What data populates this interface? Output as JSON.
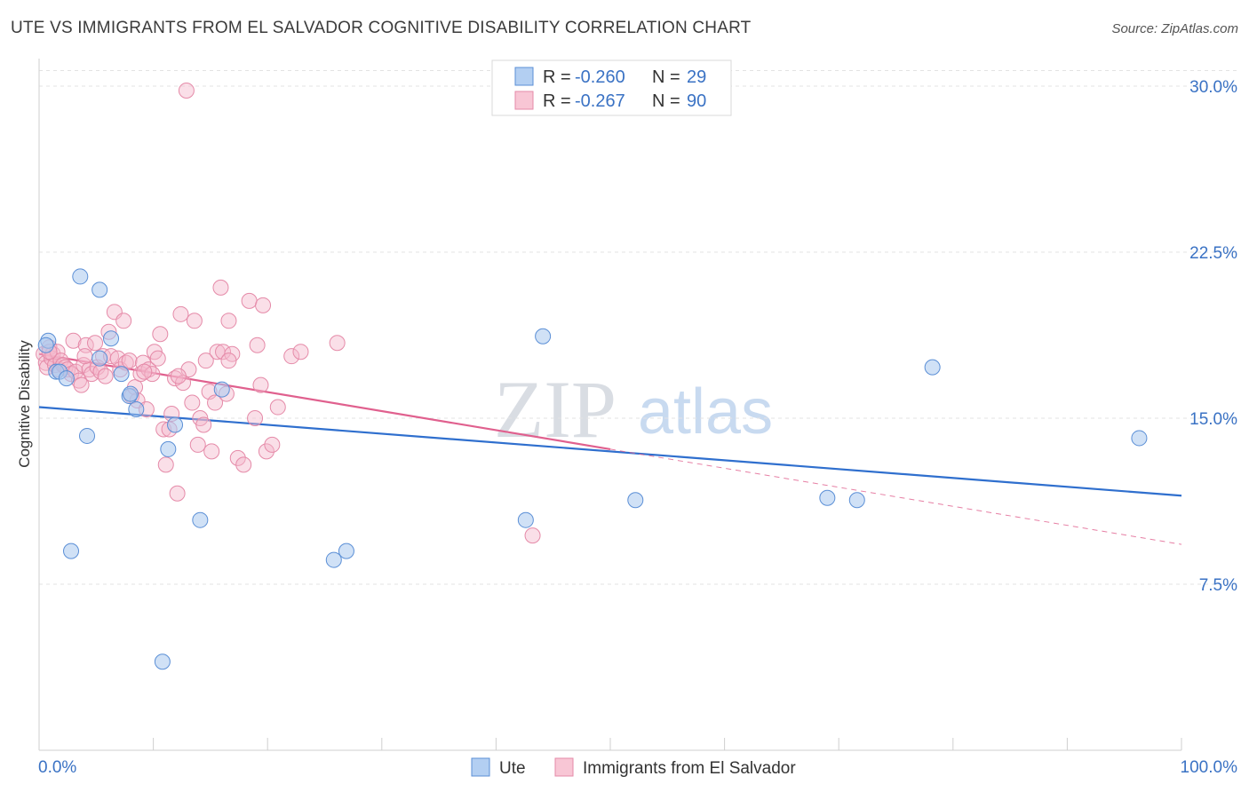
{
  "title": "UTE VS IMMIGRANTS FROM EL SALVADOR COGNITIVE DISABILITY CORRELATION CHART",
  "source": "Source: ZipAtlas.com",
  "watermark": {
    "zip": "ZIP",
    "atlas": "atlas"
  },
  "colors": {
    "ute_fill": "#a9c8ef",
    "ute_stroke": "#5b8fd6",
    "ute_line": "#2f6fce",
    "sal_fill": "#f5b8cb",
    "sal_stroke": "#e58aa8",
    "sal_line": "#e0608e",
    "grid": "#e3e3e3",
    "tick_text": "#3a72c4"
  },
  "legend": {
    "rows": [
      {
        "r_label": "R =",
        "r_value": "-0.260",
        "n_label": "N =",
        "n_value": "29"
      },
      {
        "r_label": "R =",
        "r_value": "-0.267",
        "n_label": "N =",
        "n_value": "90"
      }
    ]
  },
  "bottom_legend": [
    "Ute",
    "Immigrants from El Salvador"
  ],
  "chart_data": {
    "type": "scatter",
    "title": "UTE VS IMMIGRANTS FROM EL SALVADOR COGNITIVE DISABILITY CORRELATION CHART",
    "xlabel": "",
    "ylabel": "Cognitive Disability",
    "xlim": [
      0,
      100
    ],
    "ylim": [
      0,
      31
    ],
    "x_tick_labels": [
      "0.0%",
      "100.0%"
    ],
    "y_ticks": [
      7.5,
      15.0,
      22.5,
      30.0
    ],
    "y_tick_labels": [
      "7.5%",
      "15.0%",
      "22.5%",
      "30.0%"
    ],
    "grid": true,
    "legend_position": "top-center",
    "series": [
      {
        "name": "Ute",
        "stats": {
          "r": -0.26,
          "n": 29
        },
        "trend": {
          "x": [
            0,
            100
          ],
          "y": [
            15.5,
            11.5
          ],
          "dashed_from": null
        },
        "points": [
          [
            0.8,
            18.5
          ],
          [
            1.5,
            17.1
          ],
          [
            1.8,
            17.1
          ],
          [
            2.4,
            16.8
          ],
          [
            3.6,
            21.4
          ],
          [
            4.2,
            14.2
          ],
          [
            2.8,
            9.0
          ],
          [
            5.3,
            17.7
          ],
          [
            5.3,
            20.8
          ],
          [
            6.3,
            18.6
          ],
          [
            7.2,
            17.0
          ],
          [
            7.9,
            16.0
          ],
          [
            8.0,
            16.1
          ],
          [
            8.5,
            15.4
          ],
          [
            10.8,
            4.0
          ],
          [
            11.3,
            13.6
          ],
          [
            11.9,
            14.7
          ],
          [
            14.1,
            10.4
          ],
          [
            16.0,
            16.3
          ],
          [
            25.8,
            8.6
          ],
          [
            26.9,
            9.0
          ],
          [
            42.6,
            10.4
          ],
          [
            44.1,
            18.7
          ],
          [
            52.2,
            11.3
          ],
          [
            69.0,
            11.4
          ],
          [
            71.6,
            11.3
          ],
          [
            78.2,
            17.3
          ],
          [
            96.3,
            14.1
          ],
          [
            0.6,
            18.3
          ]
        ]
      },
      {
        "name": "Immigrants from El Salvador",
        "stats": {
          "r": -0.267,
          "n": 90
        },
        "trend": {
          "x": [
            0,
            100
          ],
          "y": [
            17.9,
            9.3
          ],
          "solid_until_x": 50
        },
        "points": [
          [
            0.4,
            17.9
          ],
          [
            0.6,
            17.5
          ],
          [
            0.7,
            17.3
          ],
          [
            0.9,
            18.2
          ],
          [
            1.1,
            17.7
          ],
          [
            1.2,
            17.9
          ],
          [
            1.4,
            17.4
          ],
          [
            1.6,
            18.0
          ],
          [
            1.7,
            17.2
          ],
          [
            1.9,
            17.6
          ],
          [
            2.1,
            17.4
          ],
          [
            2.3,
            17.3
          ],
          [
            2.5,
            17.2
          ],
          [
            2.8,
            17.0
          ],
          [
            3.0,
            18.5
          ],
          [
            3.2,
            17.1
          ],
          [
            3.5,
            16.7
          ],
          [
            3.7,
            16.5
          ],
          [
            3.9,
            17.4
          ],
          [
            4.1,
            18.3
          ],
          [
            4.4,
            17.2
          ],
          [
            4.6,
            17.0
          ],
          [
            4.9,
            18.4
          ],
          [
            5.1,
            17.3
          ],
          [
            5.4,
            17.1
          ],
          [
            5.6,
            17.8
          ],
          [
            5.8,
            16.9
          ],
          [
            6.1,
            18.9
          ],
          [
            6.3,
            17.8
          ],
          [
            6.6,
            19.8
          ],
          [
            6.9,
            17.7
          ],
          [
            7.1,
            17.2
          ],
          [
            7.4,
            19.4
          ],
          [
            7.6,
            17.5
          ],
          [
            7.9,
            17.6
          ],
          [
            8.1,
            16.0
          ],
          [
            8.4,
            16.4
          ],
          [
            8.6,
            15.8
          ],
          [
            8.9,
            17.0
          ],
          [
            9.1,
            17.5
          ],
          [
            9.4,
            15.4
          ],
          [
            9.6,
            17.2
          ],
          [
            9.9,
            17.0
          ],
          [
            10.1,
            18.0
          ],
          [
            10.4,
            17.7
          ],
          [
            10.6,
            18.8
          ],
          [
            10.9,
            14.5
          ],
          [
            11.1,
            12.9
          ],
          [
            11.4,
            14.5
          ],
          [
            11.6,
            15.2
          ],
          [
            11.9,
            16.8
          ],
          [
            12.1,
            11.6
          ],
          [
            12.4,
            19.7
          ],
          [
            12.6,
            16.6
          ],
          [
            12.9,
            29.8
          ],
          [
            13.1,
            17.2
          ],
          [
            13.4,
            15.7
          ],
          [
            13.6,
            19.4
          ],
          [
            13.9,
            13.8
          ],
          [
            14.1,
            15.0
          ],
          [
            14.4,
            14.7
          ],
          [
            14.6,
            17.6
          ],
          [
            14.9,
            16.2
          ],
          [
            15.1,
            13.5
          ],
          [
            15.4,
            15.7
          ],
          [
            15.6,
            18.0
          ],
          [
            15.9,
            20.9
          ],
          [
            16.1,
            18.0
          ],
          [
            16.4,
            16.1
          ],
          [
            16.6,
            19.4
          ],
          [
            16.9,
            17.9
          ],
          [
            17.4,
            13.2
          ],
          [
            17.9,
            12.9
          ],
          [
            18.4,
            20.3
          ],
          [
            18.9,
            15.0
          ],
          [
            19.1,
            18.3
          ],
          [
            19.4,
            16.5
          ],
          [
            19.6,
            20.1
          ],
          [
            19.9,
            13.5
          ],
          [
            20.4,
            13.8
          ],
          [
            20.9,
            15.5
          ],
          [
            22.1,
            17.8
          ],
          [
            22.9,
            18.0
          ],
          [
            26.1,
            18.4
          ],
          [
            43.2,
            9.7
          ],
          [
            0.9,
            18.0
          ],
          [
            12.2,
            16.9
          ],
          [
            16.6,
            17.6
          ],
          [
            9.2,
            17.1
          ],
          [
            4.0,
            17.8
          ]
        ]
      }
    ]
  }
}
